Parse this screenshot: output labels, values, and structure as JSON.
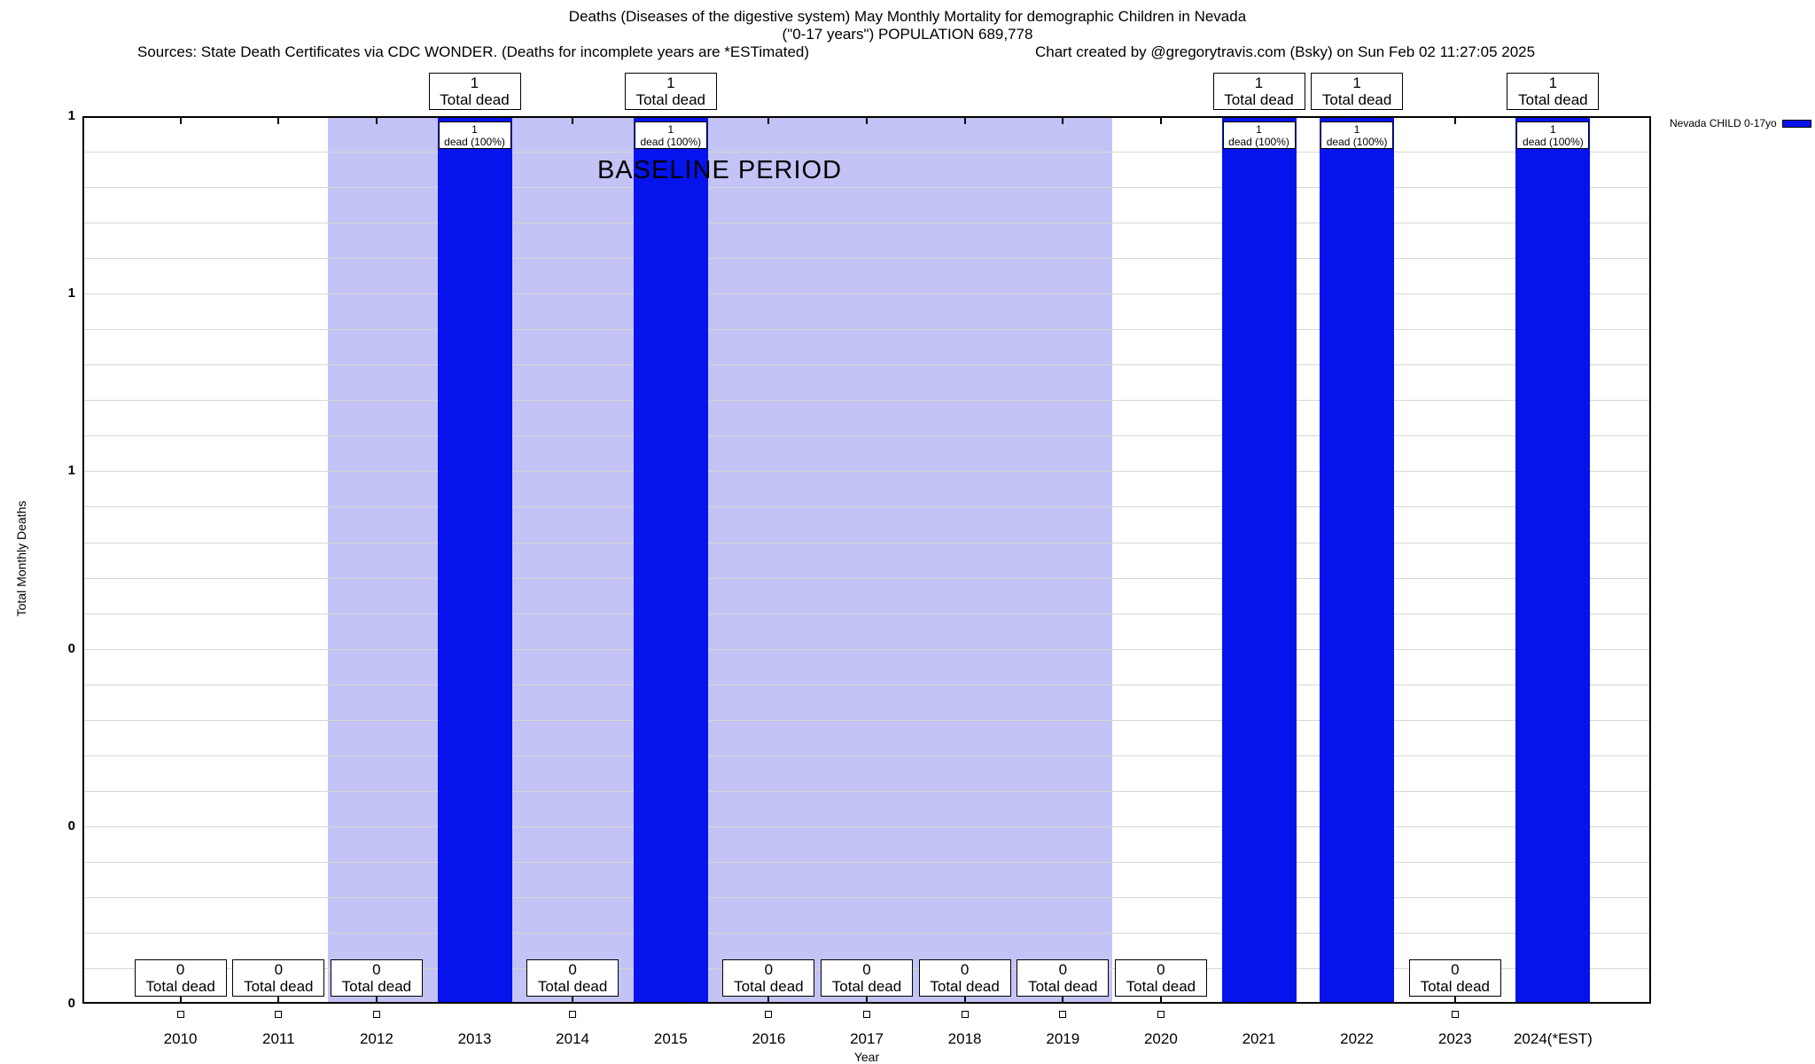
{
  "header": {
    "title": "Deaths (Diseases of the digestive system) May Monthly Mortality for demographic Children in Nevada",
    "subtitle": "(\"0-17 years\") POPULATION 689,778",
    "sources": "Sources: State Death Certificates via CDC WONDER. (Deaths for incomplete years are *ESTimated)",
    "credit": "Chart created by @gregorytravis.com (Bsky) on Sun Feb 02 11:27:05 2025"
  },
  "legend": {
    "label": "Nevada CHILD 0-17yo",
    "color": "#0713ec"
  },
  "axes": {
    "x_label": "Year",
    "y_label": "Total Monthly Deaths",
    "y_tick_values": [
      1.0,
      0.8,
      0.6,
      0.4,
      0.2,
      0.0
    ],
    "y_tick_labels": [
      "1",
      "1",
      "1",
      "0",
      "0",
      "0"
    ],
    "minor_grid_divisions": 25,
    "grid_color": "#d8d8d2"
  },
  "baseline_period": {
    "label": "BASELINE PERIOD",
    "start_category": "2012",
    "end_category": "2019",
    "color": "#c3c3f5"
  },
  "chart_data": {
    "type": "bar",
    "title": "Deaths (Diseases of the digestive system) May Monthly Mortality for demographic Children in Nevada",
    "xlabel": "Year",
    "ylabel": "Total Monthly Deaths",
    "ylim": [
      0,
      1
    ],
    "categories": [
      "2010",
      "2011",
      "2012",
      "2013",
      "2014",
      "2015",
      "2016",
      "2017",
      "2018",
      "2019",
      "2020",
      "2021",
      "2022",
      "2023",
      "2024(*EST)"
    ],
    "series": [
      {
        "name": "Nevada CHILD 0-17yo",
        "values": [
          0,
          0,
          0,
          1,
          0,
          1,
          0,
          0,
          0,
          0,
          0,
          1,
          1,
          0,
          1
        ]
      }
    ],
    "bar_color": "#0713ec",
    "annotations": {
      "nonzero_top_line1": "1",
      "nonzero_top_line2": "Total dead",
      "nonzero_inplot_line1": "1",
      "nonzero_inplot_line2": "dead (100%)",
      "zero_box_line1": "0",
      "zero_box_line2": "Total dead"
    },
    "legend_position": "top-right-outside",
    "grid": true
  }
}
